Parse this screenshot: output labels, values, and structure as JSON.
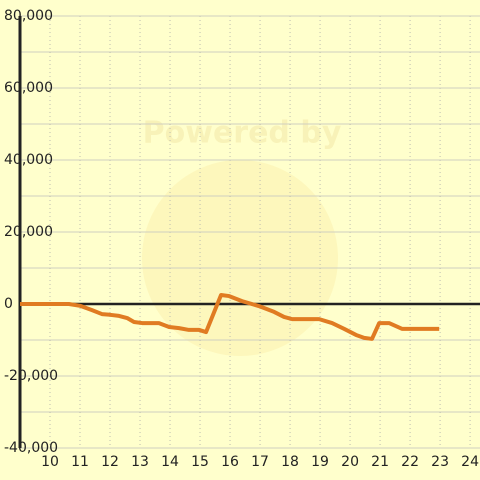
{
  "chart_data": {
    "type": "line",
    "watermark": "Powered by",
    "x": [
      9,
      10.63,
      11,
      11.4,
      11.73,
      12,
      12.3,
      12.57,
      12.8,
      13.07,
      13.63,
      13.97,
      14.3,
      14.63,
      14.97,
      15.2,
      15.7,
      15.97,
      16.4,
      16.97,
      17.47,
      17.8,
      18.07,
      18.97,
      19.4,
      19.8,
      20.2,
      20.47,
      20.73,
      20.97,
      21.3,
      21.73,
      22.97
    ],
    "series": [
      {
        "color": "#e07b22",
        "values": [
          0,
          0,
          -500,
          -1700,
          -2800,
          -3000,
          -3300,
          -3900,
          -5000,
          -5300,
          -5300,
          -6400,
          -6700,
          -7200,
          -7200,
          -7800,
          2500,
          2200,
          800,
          -600,
          -2200,
          -3600,
          -4200,
          -4200,
          -5300,
          -6900,
          -8600,
          -9400,
          -9700,
          -5300,
          -5300,
          -6900,
          -6900
        ]
      }
    ],
    "xlim": [
      9,
      24.33
    ],
    "ylim": [
      -40000,
      80000
    ],
    "xticks": [
      10,
      11,
      12,
      13,
      14,
      15,
      16,
      17,
      18,
      19,
      20,
      21,
      22,
      23,
      24
    ],
    "yticks": [
      {
        "value": 80000,
        "label": "80,000"
      },
      {
        "value": 60000,
        "label": "60,000"
      },
      {
        "value": 40000,
        "label": "40,000"
      },
      {
        "value": 20000,
        "label": "20,000"
      },
      0,
      {
        "value": -20000,
        "label": "-20,000"
      },
      {
        "value": -40000,
        "label": "-40,000"
      }
    ],
    "y_minor_grid": [
      70000,
      50000,
      30000,
      10000,
      -10000,
      -30000
    ],
    "grid": true
  }
}
